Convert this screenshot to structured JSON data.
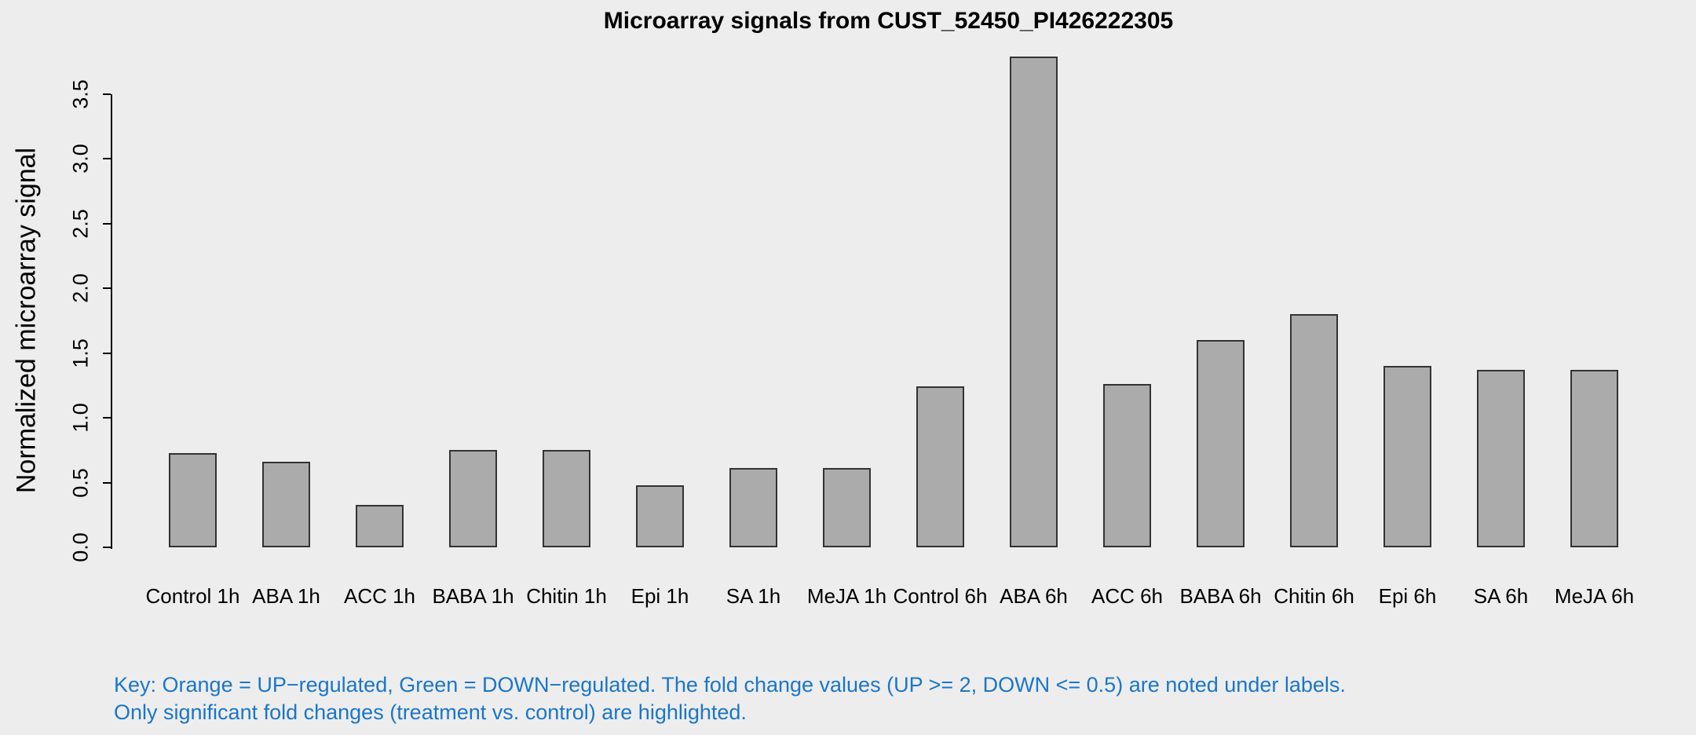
{
  "chart_data": {
    "type": "bar",
    "title": "Microarray signals from CUST_52450_PI426222305",
    "xlabel": "",
    "ylabel": "Normalized microarray signal",
    "categories": [
      "Control 1h",
      "ABA 1h",
      "ACC 1h",
      "BABA 1h",
      "Chitin 1h",
      "Epi 1h",
      "SA 1h",
      "MeJA 1h",
      "Control 6h",
      "ABA 6h",
      "ACC 6h",
      "BABA 6h",
      "Chitin 6h",
      "Epi 6h",
      "SA 6h",
      "MeJA 6h"
    ],
    "values": [
      0.73,
      0.66,
      0.33,
      0.75,
      0.75,
      0.48,
      0.61,
      0.61,
      1.24,
      3.79,
      1.26,
      1.6,
      1.8,
      1.4,
      1.37,
      1.37
    ],
    "ylim": [
      0,
      3.5
    ],
    "yticks": [
      "0.0",
      "0.5",
      "1.0",
      "1.5",
      "2.0",
      "2.5",
      "3.0",
      "3.5"
    ],
    "grid": false,
    "legend_position": "none",
    "bar_fill": "#ABABAB",
    "bar_border": "#333333",
    "background": "#EDEDED",
    "text_color": "#000000"
  },
  "footnote": {
    "line1": "Key: Orange = UP−regulated, Green = DOWN−regulated. The fold change values (UP >= 2, DOWN <= 0.5) are noted under labels.",
    "line2": "Only significant fold changes (treatment vs. control) are highlighted.",
    "color": "#1B76C8"
  }
}
